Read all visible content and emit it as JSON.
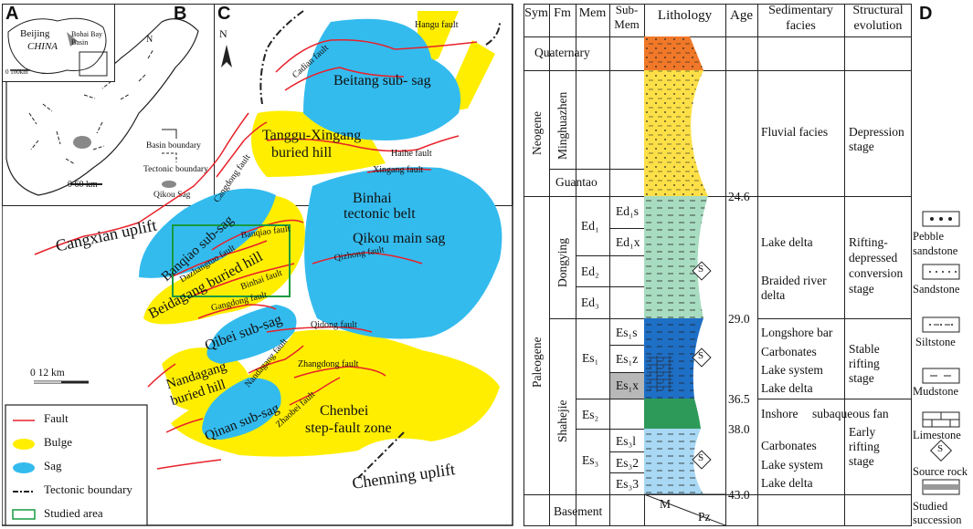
{
  "panels": {
    "a": "A",
    "b": "B",
    "c": "C",
    "d": "D"
  },
  "inset_a": {
    "beijing": "Beijing",
    "china": "CHINA",
    "bay": "Bohai Bay Basin",
    "scale": "0    100km",
    "north": "N"
  },
  "inset_b": {
    "north": "N",
    "scale": "0      60 km",
    "legend": [
      {
        "label": "Basin boundary"
      },
      {
        "label": "Tectonic boundary"
      },
      {
        "label": "Qikou Sag"
      }
    ]
  },
  "map": {
    "north": "N",
    "uplift_cangxian": "Cangxian uplift",
    "uplift_chenning": "Chenning uplift",
    "scale_label": "0          12 km",
    "features": [
      {
        "label": "Beitang sub- sag"
      },
      {
        "label": "Tanggu-Xingang"
      },
      {
        "label": "buried hill"
      },
      {
        "label": "Binhai"
      },
      {
        "label": "tectonic belt"
      },
      {
        "label": "Qikou main sag"
      },
      {
        "label": "Banqiao sub-sag"
      },
      {
        "label": "Beidagang buried hill"
      },
      {
        "label": "Qibei sub-sag"
      },
      {
        "label": "Nandagang"
      },
      {
        "label": "buried hill"
      },
      {
        "label": "Qinan sub-sag"
      },
      {
        "label": "Chenbei"
      },
      {
        "label": "step-fault zone"
      }
    ],
    "faults": [
      {
        "label": "Hangu fault"
      },
      {
        "label": "Cadian fault"
      },
      {
        "label": "Haihe fault"
      },
      {
        "label": "Xingang fault"
      },
      {
        "label": "Cangdong fault"
      },
      {
        "label": "Banqiao fault"
      },
      {
        "label": "Dazhangtuo fault"
      },
      {
        "label": "Binhai fault"
      },
      {
        "label": "Qizhong fault"
      },
      {
        "label": "Gangdong fault"
      },
      {
        "label": "Qidong fault"
      },
      {
        "label": "Nandagang fault"
      },
      {
        "label": "Zhangdong fault"
      },
      {
        "label": "Zhaobei fault"
      }
    ],
    "legend": [
      {
        "label": "Fault"
      },
      {
        "label": "Bulge"
      },
      {
        "label": "Sag"
      },
      {
        "label": "Tectonic boundary"
      },
      {
        "label": "Studied area"
      }
    ],
    "colors": {
      "bulge": "#ffee00",
      "sag": "#33bbee",
      "fault": "#e8212a",
      "study": "#1a9a40"
    }
  },
  "strat": {
    "headers": {
      "sym": "Sym",
      "fm": "Fm",
      "mem": "Mem",
      "submem1": "Sub-",
      "submem2": "Mem",
      "lith": "Lithology",
      "age": "Age",
      "facies1": "Sedimentary",
      "facies2": "facies",
      "evol1": "Structural",
      "evol2": "evolution"
    },
    "quaternary": "Quaternary",
    "neogene": "Neogene",
    "minghuazhen": "Minghuazhen",
    "guantao": "Guantao",
    "paleogene": "Paleogene",
    "dongying": "Dongying",
    "shahejie": "Shahejie",
    "basement": "Basement",
    "members": {
      "ed1": "Ed₁",
      "ed2": "Ed₂",
      "ed3": "Ed₃",
      "es1": "Es₁",
      "es2": "Es₂",
      "es3": "Es₃"
    },
    "submembers": {
      "ed1s": "Ed₁s",
      "ed1x": "Ed₁x",
      "es1s": "Es₁s",
      "es1z": "Es₁z",
      "es1x": "Es₁x",
      "es3l": "Es₃l",
      "es32": "Es₃2",
      "es33": "Es₃3"
    },
    "ages": [
      "24.6",
      "29.0",
      "36.5",
      "38.0",
      "43.0"
    ],
    "basement_m": "M",
    "basement_pz": "Pz",
    "facies": {
      "f1": "Fluvial facies",
      "f2": "Lake delta",
      "f3": "Braided river",
      "f3b": "delta",
      "f4": "Longshore bar",
      "f5": "Carbonates",
      "f6": "Lake system",
      "f7": "Lake delta",
      "f8": "Inshore",
      "f8b": "subaqueous fan",
      "f9": "Carbonates",
      "f10": "Lake system",
      "f11": "Lake delta"
    },
    "evolution": {
      "e1": "Depression",
      "e1b": "stage",
      "e2": "Rifting-",
      "e2b": "depressed",
      "e2c": "conversion",
      "e2d": "stage",
      "e3": "Stable",
      "e3b": "rifting",
      "e3c": "stage",
      "e4": "Early",
      "e4b": "rifting",
      "e4c": "stage"
    },
    "source_symbol": "S",
    "colors": {
      "quaternary": "#f07828",
      "neogene": "#fde047",
      "dongying": "#a8dcc0",
      "es1": "#1e6fc6",
      "es2": "#2e9a5a",
      "es3": "#a8d8f4",
      "studied": "#b8b8b8"
    }
  },
  "lith_legend": [
    {
      "label": "Pebble"
    },
    {
      "label": "sandstone"
    },
    {
      "label": "Sandstone"
    },
    {
      "label": "Siltstone"
    },
    {
      "label": "Mudstone"
    },
    {
      "label": "Limestone"
    },
    {
      "label": "Source rock"
    },
    {
      "label": "Studied"
    },
    {
      "label": "succession"
    }
  ]
}
